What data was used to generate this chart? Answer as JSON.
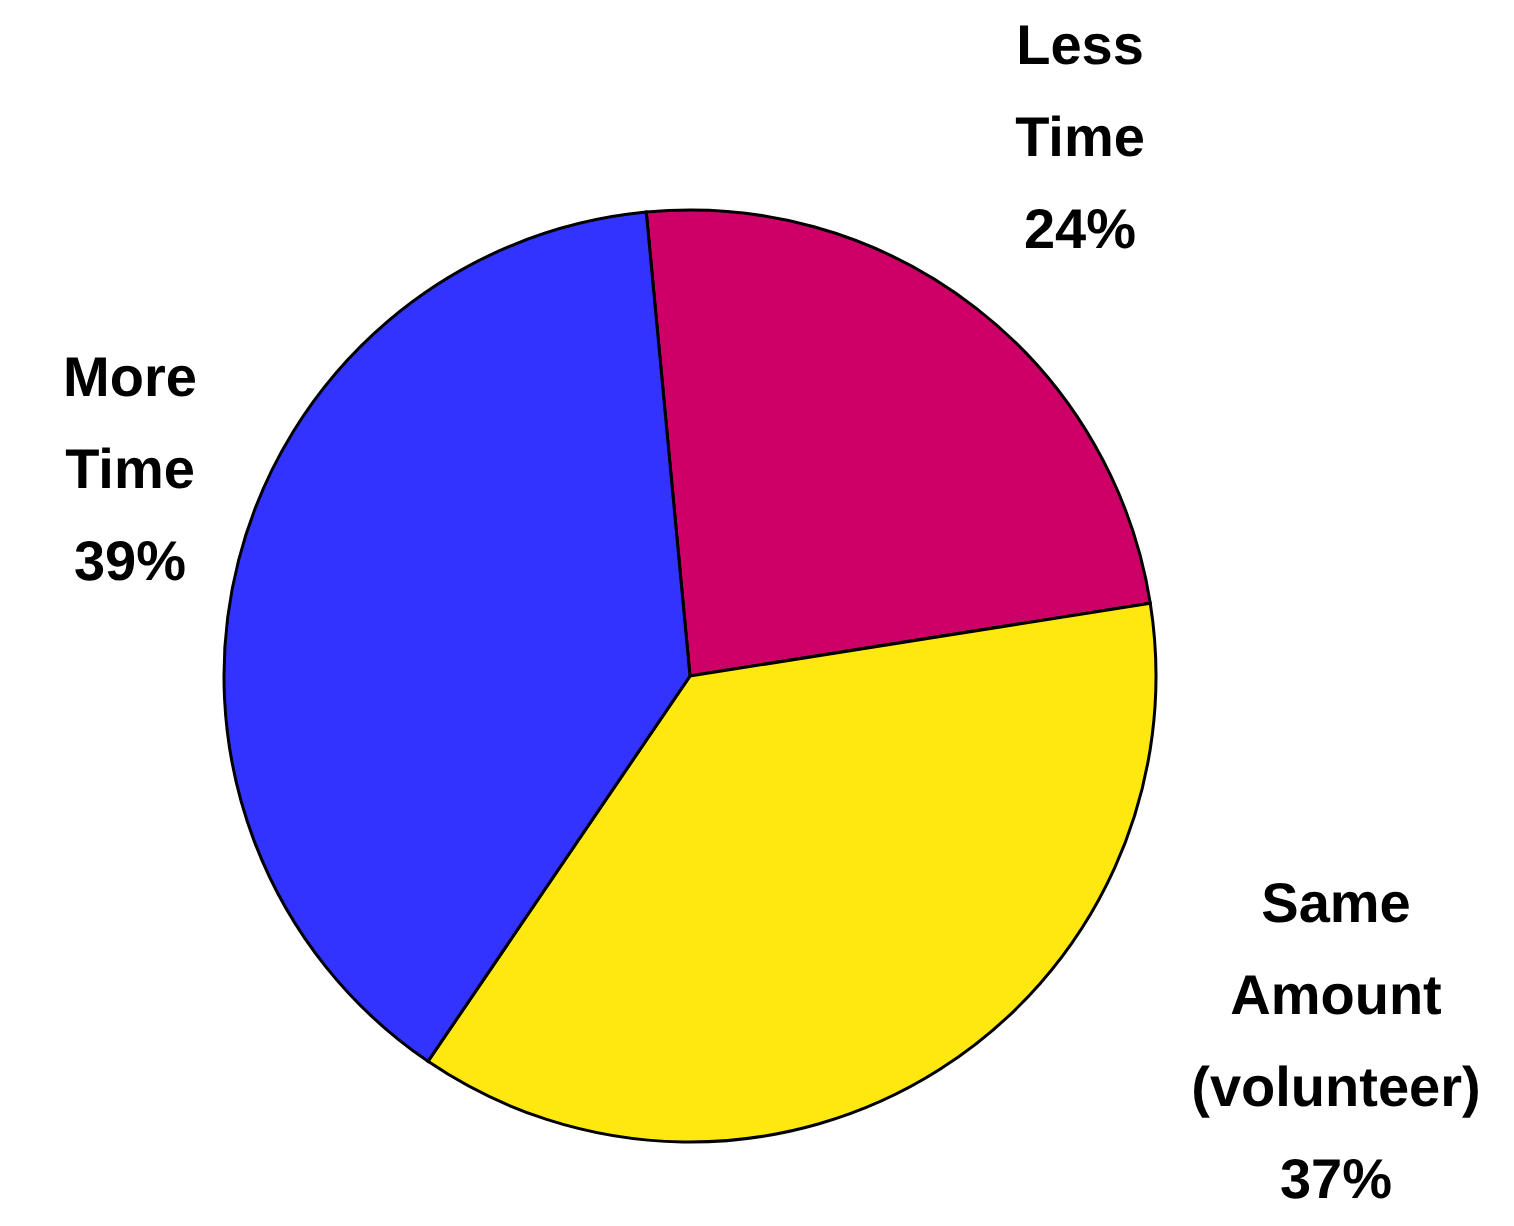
{
  "chart_data": {
    "type": "pie",
    "categories": [
      "Less Time",
      "Same Amount (volunteer)",
      "More Time"
    ],
    "values": [
      24,
      37,
      39
    ],
    "colors": [
      "#cc0066",
      "#ffe80f",
      "#3333ff"
    ],
    "value_labels": [
      "24%",
      "37%",
      "39%"
    ]
  }
}
